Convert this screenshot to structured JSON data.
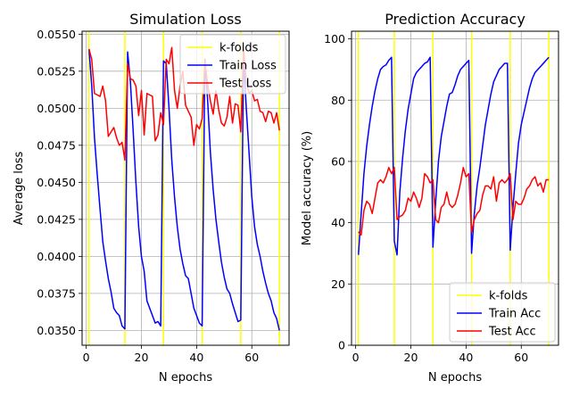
{
  "chart_data": [
    {
      "type": "line",
      "title": "Simulation Loss",
      "xlabel": "N epochs",
      "ylabel": "Average loss",
      "xlim": [
        -1.5,
        73.5
      ],
      "ylim": [
        0.034,
        0.0552
      ],
      "xticks": [
        0,
        20,
        40,
        60
      ],
      "yticks": [
        0.035,
        0.0375,
        0.04,
        0.0425,
        0.045,
        0.0475,
        0.05,
        0.0525,
        0.055
      ],
      "ytick_labels": [
        "0.0350",
        "0.0375",
        "0.0400",
        "0.0425",
        "0.0450",
        "0.0475",
        "0.0500",
        "0.0525",
        "0.0550"
      ],
      "grid": true,
      "legend_position": "top-right",
      "vlines": {
        "name": "k-folds",
        "color": "#ffff00",
        "x": [
          1,
          14,
          28,
          42,
          56,
          70
        ]
      },
      "series": [
        {
          "name": "Train Loss",
          "color": "#0000ff",
          "x": [
            1,
            2,
            3,
            4,
            5,
            6,
            7,
            8,
            9,
            10,
            11,
            12,
            13,
            14,
            15,
            16,
            17,
            18,
            19,
            20,
            21,
            22,
            23,
            24,
            25,
            26,
            27,
            28,
            29,
            30,
            31,
            32,
            33,
            34,
            35,
            36,
            37,
            38,
            39,
            40,
            41,
            42,
            43,
            44,
            45,
            46,
            47,
            48,
            49,
            50,
            51,
            52,
            53,
            54,
            55,
            56,
            57,
            58,
            59,
            60,
            61,
            62,
            63,
            64,
            65,
            66,
            67,
            68,
            69,
            70
          ],
          "values": [
            0.054,
            0.0515,
            0.048,
            0.0455,
            0.0432,
            0.041,
            0.0397,
            0.0385,
            0.0376,
            0.0365,
            0.0362,
            0.036,
            0.0353,
            0.0351,
            0.0538,
            0.0518,
            0.0485,
            0.045,
            0.042,
            0.04,
            0.039,
            0.037,
            0.0365,
            0.036,
            0.0355,
            0.0356,
            0.0353,
            0.0532,
            0.053,
            0.05,
            0.0465,
            0.044,
            0.042,
            0.0405,
            0.0395,
            0.0387,
            0.0385,
            0.0375,
            0.0365,
            0.036,
            0.0355,
            0.0353,
            0.0533,
            0.0505,
            0.047,
            0.0445,
            0.0425,
            0.041,
            0.0396,
            0.0386,
            0.0378,
            0.0375,
            0.0368,
            0.0362,
            0.0356,
            0.0357,
            0.0535,
            0.05,
            0.047,
            0.044,
            0.042,
            0.0408,
            0.04,
            0.039,
            0.0382,
            0.0375,
            0.037,
            0.0362,
            0.0358,
            0.035
          ]
        },
        {
          "name": "Test Loss",
          "color": "#ff0000",
          "x": [
            1,
            2,
            3,
            4,
            5,
            6,
            7,
            8,
            9,
            10,
            11,
            12,
            13,
            14,
            15,
            16,
            17,
            18,
            19,
            20,
            21,
            22,
            23,
            24,
            25,
            26,
            27,
            28,
            29,
            30,
            31,
            32,
            33,
            34,
            35,
            36,
            37,
            38,
            39,
            40,
            41,
            42,
            43,
            44,
            45,
            46,
            47,
            48,
            49,
            50,
            51,
            52,
            53,
            54,
            55,
            56,
            57,
            58,
            59,
            60,
            61,
            62,
            63,
            64,
            65,
            66,
            67,
            68,
            69,
            70
          ],
          "values": [
            0.054,
            0.0533,
            0.051,
            0.0509,
            0.0508,
            0.0515,
            0.0505,
            0.0481,
            0.0484,
            0.0487,
            0.048,
            0.0475,
            0.0477,
            0.0465,
            0.053,
            0.052,
            0.0519,
            0.0515,
            0.0495,
            0.0512,
            0.0482,
            0.051,
            0.0509,
            0.0508,
            0.0478,
            0.0482,
            0.0497,
            0.0489,
            0.0533,
            0.053,
            0.0541,
            0.0512,
            0.05,
            0.0515,
            0.0525,
            0.0502,
            0.0498,
            0.0494,
            0.0475,
            0.0489,
            0.0486,
            0.0493,
            0.0532,
            0.0516,
            0.0505,
            0.0496,
            0.0512,
            0.0499,
            0.049,
            0.0488,
            0.0494,
            0.0508,
            0.049,
            0.0503,
            0.0502,
            0.0484,
            0.054,
            0.0518,
            0.051,
            0.0512,
            0.0505,
            0.0506,
            0.0498,
            0.0497,
            0.0491,
            0.0498,
            0.0497,
            0.049,
            0.0497,
            0.0485
          ]
        }
      ]
    },
    {
      "type": "line",
      "title": "Prediction Accuracy",
      "xlabel": "N epochs",
      "ylabel": "Model accuracy (%)",
      "xlim": [
        -1.5,
        73.5
      ],
      "ylim": [
        0,
        102.5
      ],
      "xticks": [
        0,
        20,
        40,
        60
      ],
      "yticks": [
        0,
        20,
        40,
        60,
        80,
        100
      ],
      "ytick_labels": [
        "0",
        "20",
        "40",
        "60",
        "80",
        "100"
      ],
      "grid": true,
      "legend_position": "lower-right",
      "vlines": {
        "name": "k-folds",
        "color": "#ffff00",
        "x": [
          1,
          14,
          28,
          42,
          56,
          70
        ]
      },
      "series": [
        {
          "name": "Train Acc",
          "color": "#0000ff",
          "x": [
            1,
            2,
            3,
            4,
            5,
            6,
            7,
            8,
            9,
            10,
            11,
            12,
            13,
            14,
            15,
            16,
            17,
            18,
            19,
            20,
            21,
            22,
            23,
            24,
            25,
            26,
            27,
            28,
            29,
            30,
            31,
            32,
            33,
            34,
            35,
            36,
            37,
            38,
            39,
            40,
            41,
            42,
            43,
            44,
            45,
            46,
            47,
            48,
            49,
            50,
            51,
            52,
            53,
            54,
            55,
            56,
            57,
            58,
            59,
            60,
            61,
            62,
            63,
            64,
            65,
            66,
            67,
            68,
            69,
            70
          ],
          "values": [
            29.5,
            43,
            56,
            65,
            72,
            78,
            83,
            87,
            90,
            91,
            91.5,
            93,
            94,
            34,
            29.5,
            50,
            61,
            70,
            77,
            82,
            87,
            89,
            90,
            91,
            92,
            92.5,
            94,
            32,
            47,
            60,
            68,
            73,
            78,
            82,
            82.5,
            85,
            88,
            90,
            91,
            92,
            93,
            30,
            43,
            52,
            58,
            65,
            72,
            77,
            82,
            86,
            88,
            90,
            91,
            92,
            92,
            31,
            45,
            56,
            66,
            72,
            76,
            80,
            84,
            87,
            89,
            90,
            91,
            92,
            93,
            94
          ],
          "comment": ""
        },
        {
          "name": "Test Acc",
          "color": "#ff0000",
          "x": [
            1,
            2,
            3,
            4,
            5,
            6,
            7,
            8,
            9,
            10,
            11,
            12,
            13,
            14,
            15,
            16,
            17,
            18,
            19,
            20,
            21,
            22,
            23,
            24,
            25,
            26,
            27,
            28,
            29,
            30,
            31,
            32,
            33,
            34,
            35,
            36,
            37,
            38,
            39,
            40,
            41,
            42,
            43,
            44,
            45,
            46,
            47,
            48,
            49,
            50,
            51,
            52,
            53,
            54,
            55,
            56,
            57,
            58,
            59,
            60,
            61,
            62,
            63,
            64,
            65,
            66,
            67,
            68,
            69,
            70
          ],
          "values": [
            37,
            36,
            44,
            47,
            46,
            43,
            48,
            53,
            54,
            53,
            55,
            58,
            56,
            58,
            41,
            42,
            42.5,
            44,
            48,
            47,
            50,
            48,
            45,
            48,
            56,
            55,
            53,
            54,
            41,
            40,
            45,
            46,
            50,
            46,
            45,
            46,
            49,
            53,
            58,
            55,
            56,
            37,
            41,
            43,
            44,
            49,
            52,
            52,
            51,
            55,
            47,
            53,
            54,
            53,
            54,
            56,
            41,
            47,
            46,
            46,
            48,
            51,
            52,
            54,
            55,
            52,
            53,
            50,
            54,
            54
          ]
        }
      ]
    }
  ],
  "legends": [
    [
      "k-folds",
      "Train Loss",
      "Test Loss"
    ],
    [
      "k-folds",
      "Train Acc",
      "Test Acc"
    ]
  ]
}
